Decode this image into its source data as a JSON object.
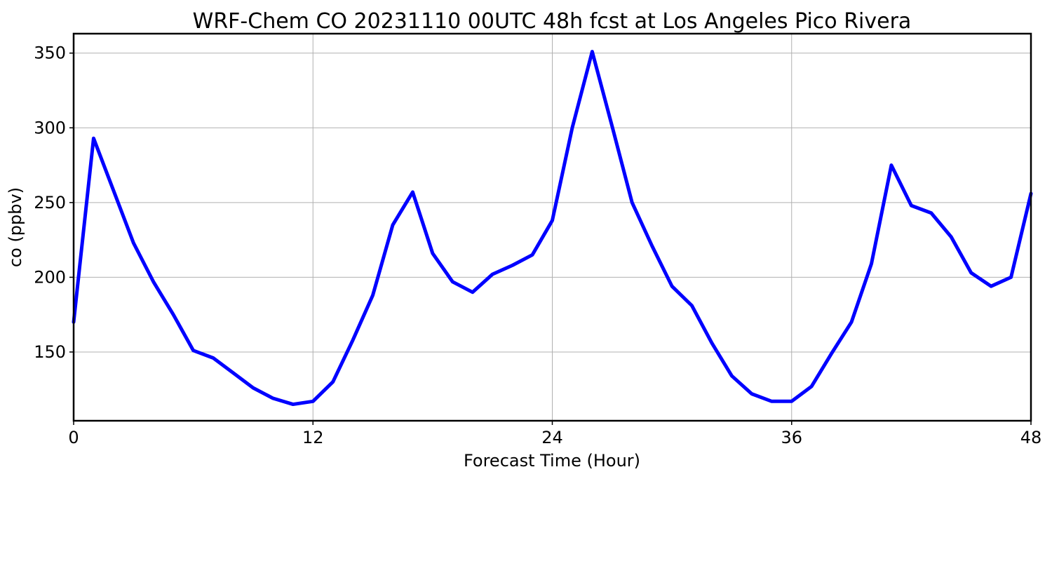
{
  "chart_data": {
    "type": "line",
    "title": "WRF-Chem CO  20231110 00UTC 48h fcst at Los Angeles Pico Rivera",
    "xlabel": "Forecast Time (Hour)",
    "ylabel": "co  (ppbv)",
    "xlim": [
      0,
      48
    ],
    "ylim": [
      104,
      363
    ],
    "xticks": [
      0,
      12,
      24,
      36,
      48
    ],
    "yticks": [
      150,
      200,
      250,
      300,
      350
    ],
    "grid": true,
    "line_color": "#0000ff",
    "series": [
      {
        "x": [
          0,
          1,
          2,
          3,
          4,
          5,
          6,
          7,
          8,
          9,
          10,
          11,
          12,
          13,
          14,
          15,
          16,
          17,
          18,
          19,
          20,
          21,
          22,
          23,
          24,
          25,
          26,
          27,
          28,
          29,
          30,
          31,
          32,
          33,
          34,
          35,
          36,
          37,
          38,
          39,
          40,
          41,
          42,
          43,
          44,
          45,
          46,
          47,
          48
        ],
        "values": [
          170,
          293,
          258,
          223,
          197,
          175,
          151,
          146,
          136,
          126,
          119,
          115,
          117,
          130,
          158,
          188,
          235,
          257,
          216,
          197,
          190,
          202,
          208,
          215,
          238,
          300,
          351,
          301,
          250,
          221,
          194,
          181,
          156,
          134,
          122,
          117,
          117,
          127,
          149,
          170,
          209,
          275,
          248,
          243,
          227,
          203,
          194,
          200,
          256
        ]
      }
    ]
  }
}
